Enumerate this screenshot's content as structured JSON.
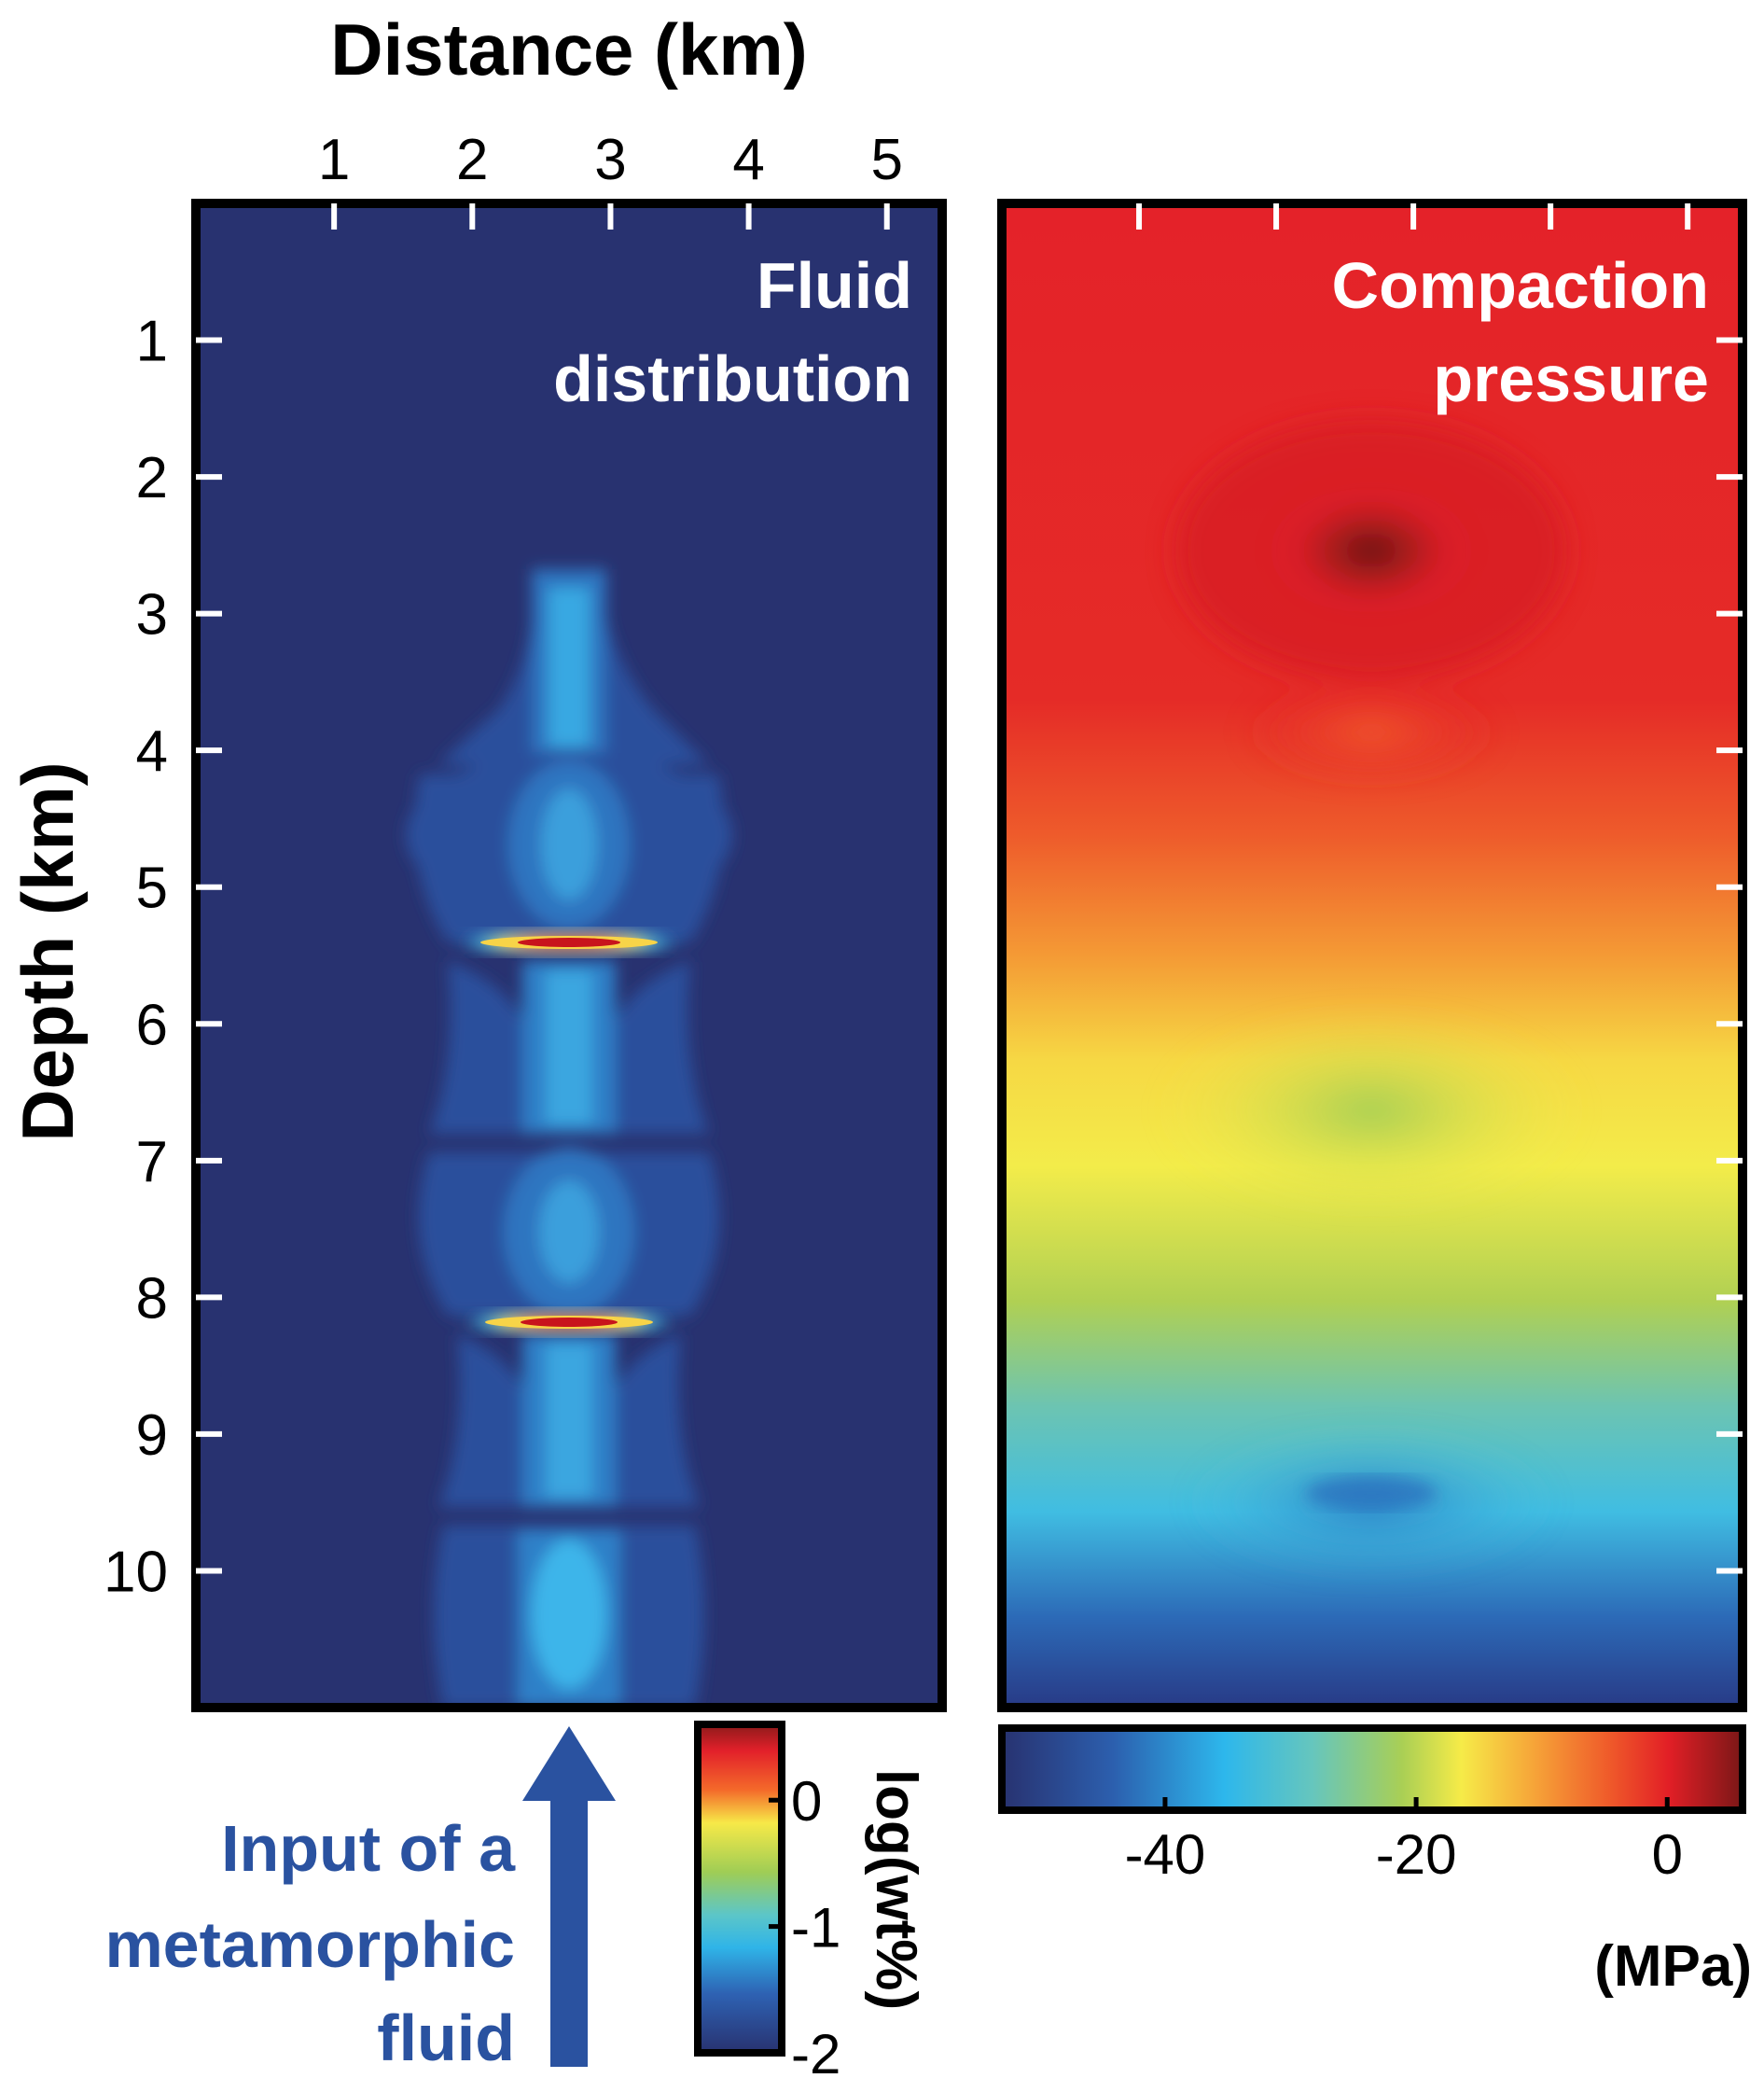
{
  "chart_data": [
    {
      "type": "heatmap",
      "title": "Fluid distribution",
      "xlabel": "Distance (km)",
      "ylabel": "Depth (km)",
      "xlim": [
        0,
        5.4
      ],
      "ylim": [
        11,
        0
      ],
      "x_ticks": [
        1,
        2,
        3,
        4,
        5
      ],
      "y_ticks": [
        1,
        2,
        3,
        4,
        5,
        6,
        7,
        8,
        9,
        10
      ],
      "colorbar": {
        "label": "log(wt%)",
        "ticks": [
          0,
          -1,
          -2
        ],
        "range": [
          -2,
          0.6
        ]
      },
      "features": [
        {
          "label": "Input of a metamorphic fluid",
          "x": 2.7,
          "kind": "arrow"
        },
        {
          "kind": "fluid-peak",
          "x": 2.7,
          "depth": 5.45,
          "value": 0.5
        },
        {
          "kind": "fluid-peak",
          "x": 2.7,
          "depth": 8.25,
          "value": 0.5
        }
      ]
    },
    {
      "type": "heatmap",
      "title": "Compaction pressure",
      "xlim": [
        0,
        5.4
      ],
      "ylim": [
        11,
        0
      ],
      "colorbar": {
        "label": "(MPa)",
        "ticks": [
          -40,
          -20,
          0
        ],
        "range": [
          -53,
          6
        ]
      }
    }
  ],
  "panels": {
    "left_title_line1": "Fluid",
    "left_title_line2": "distribution",
    "right_title_line1": "Compaction",
    "right_title_line2": "pressure"
  },
  "axes": {
    "x_label": "Distance (km)",
    "y_label": "Depth (km)"
  },
  "annotation": {
    "line1": "Input of a",
    "line2": "metamorphic",
    "line3": "fluid"
  },
  "colors": {
    "background_deep": "#283270",
    "arrow": "#2a52a0",
    "annotation_text": "#2a52a0",
    "frame": "#000000",
    "title_text": "#ffffff"
  }
}
